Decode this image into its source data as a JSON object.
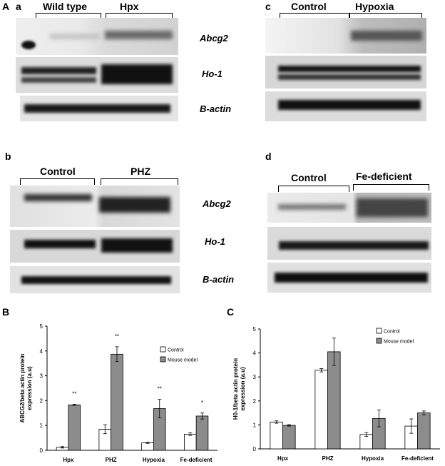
{
  "panel_A": {
    "letter": "A",
    "subpanels": [
      {
        "letter": "a",
        "groups": [
          "Wild type",
          "Hpx"
        ],
        "genes": [
          "Abcg2",
          "Ho-1",
          "B-actin"
        ]
      },
      {
        "letter": "b",
        "groups": [
          "Control",
          "PHZ"
        ],
        "genes": [
          "Abcg2",
          "Ho-1",
          "B-actin"
        ]
      },
      {
        "letter": "c",
        "groups": [
          "Control",
          "Hypoxia"
        ],
        "genes": []
      },
      {
        "letter": "d",
        "groups": [
          "Control",
          "Fe-deficient"
        ],
        "genes": []
      }
    ]
  },
  "panel_B": {
    "letter": "B"
  },
  "panel_C": {
    "letter": "C"
  },
  "chart_data": [
    {
      "type": "bar",
      "title": "",
      "xlabel": "",
      "ylabel": "ABCG2/beta actin protein expression (a.u)",
      "ylim": [
        0,
        5
      ],
      "yticks": [
        0,
        1,
        2,
        3,
        4,
        5
      ],
      "categories": [
        "Hpx",
        "PHZ",
        "Hypoxia",
        "Fe-deficient"
      ],
      "series": [
        {
          "name": "Control",
          "values": [
            0.12,
            0.85,
            0.3,
            0.65
          ],
          "errors": [
            0.03,
            0.18,
            0.02,
            0.05
          ],
          "color": "#ffffff"
        },
        {
          "name": "Mouse model",
          "values": [
            1.83,
            3.87,
            1.68,
            1.38
          ],
          "errors": [
            0.02,
            0.3,
            0.37,
            0.12
          ],
          "color": "#8c8c8c"
        }
      ],
      "significance": [
        "**",
        "**",
        "**",
        "*"
      ],
      "legend_position": "top-right"
    },
    {
      "type": "bar",
      "title": "",
      "xlabel": "",
      "ylabel": "H0-1/beta actin protein expression (a.u)",
      "ylim": [
        0,
        5
      ],
      "yticks": [
        0,
        1,
        2,
        3,
        4,
        5
      ],
      "categories": [
        "Hpx",
        "PHZ",
        "Hypoxia",
        "Fe-deficient"
      ],
      "series": [
        {
          "name": "Control",
          "values": [
            1.12,
            3.28,
            0.6,
            0.95
          ],
          "errors": [
            0.05,
            0.07,
            0.08,
            0.3
          ],
          "color": "#ffffff"
        },
        {
          "name": "Mouse model",
          "values": [
            0.98,
            4.05,
            1.27,
            1.5
          ],
          "errors": [
            0.03,
            0.57,
            0.35,
            0.08
          ],
          "color": "#8c8c8c"
        }
      ],
      "significance": [],
      "legend_position": "top-right"
    }
  ]
}
